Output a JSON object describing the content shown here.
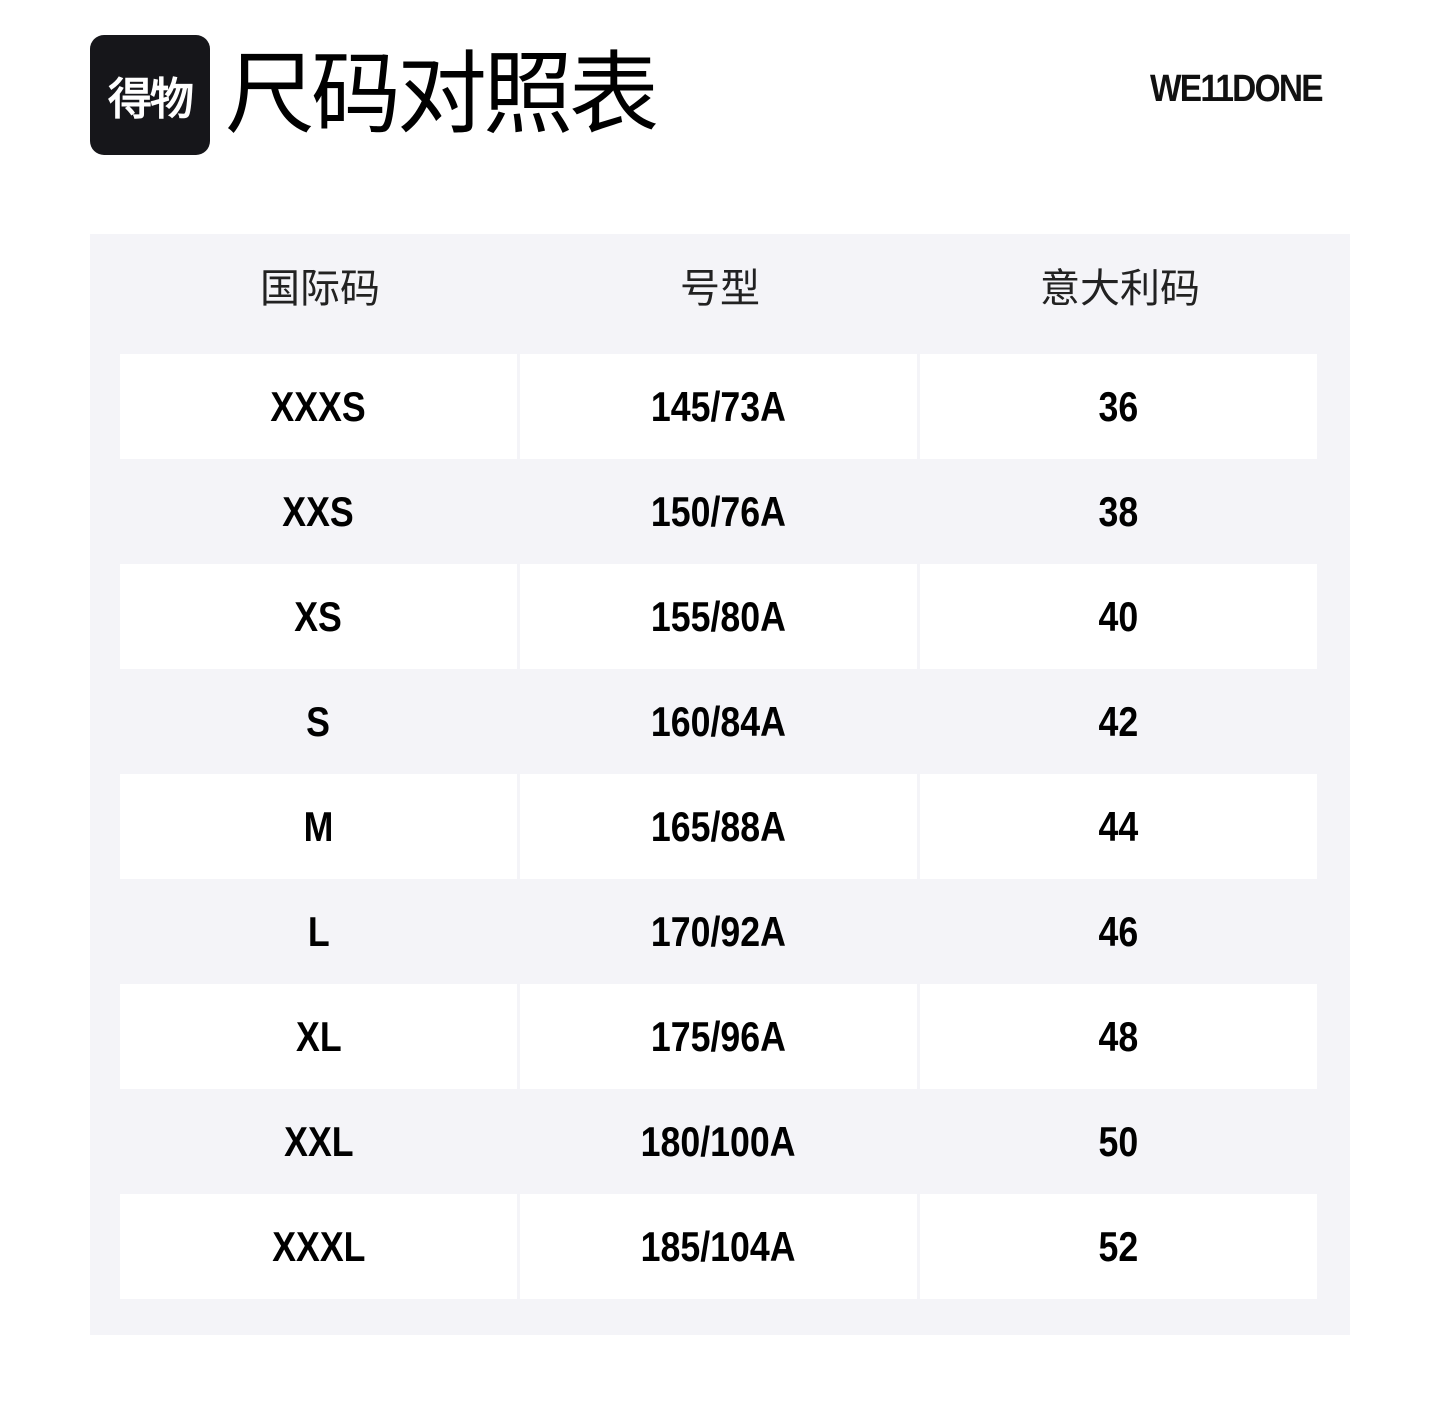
{
  "header": {
    "logo_text": "得物",
    "title": "尺码对照表",
    "brand": "WE11DONE"
  },
  "table": {
    "columns": [
      "国际码",
      "号型",
      "意大利码"
    ],
    "rows": [
      [
        "XXXS",
        "145/73A",
        "36"
      ],
      [
        "XXS",
        "150/76A",
        "38"
      ],
      [
        "XS",
        "155/80A",
        "40"
      ],
      [
        "S",
        "160/84A",
        "42"
      ],
      [
        "M",
        "165/88A",
        "44"
      ],
      [
        "L",
        "170/92A",
        "46"
      ],
      [
        "XL",
        "175/96A",
        "48"
      ],
      [
        "XXL",
        "180/100A",
        "50"
      ],
      [
        "XXXL",
        "185/104A",
        "52"
      ]
    ]
  },
  "colors": {
    "panel_bg": "#f4f4f8",
    "logo_bg": "#16161a"
  }
}
